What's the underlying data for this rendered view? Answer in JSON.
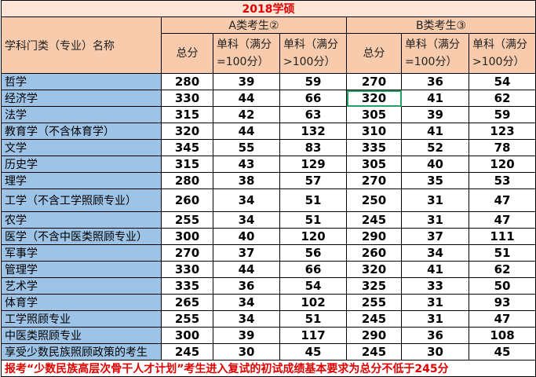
{
  "title": "2018学硕",
  "table": {
    "category_header": "学科门类（专业）名称",
    "group_headers": [
      "A类考生②",
      "B类考生③"
    ],
    "subheaders": [
      "总分",
      "单科（满分=100分）",
      "单科（满分>100分）",
      "总分",
      "单科（满分=100分）",
      "单科（满分>100分）"
    ],
    "rows": [
      [
        "哲学",
        280,
        39,
        59,
        270,
        36,
        54
      ],
      [
        "经济学",
        330,
        44,
        66,
        320,
        41,
        62
      ],
      [
        "法学",
        315,
        42,
        63,
        305,
        39,
        59
      ],
      [
        "教育学（不含体育学）",
        320,
        44,
        132,
        310,
        41,
        123
      ],
      [
        "文学",
        345,
        55,
        83,
        335,
        52,
        78
      ],
      [
        "历史学",
        315,
        43,
        129,
        305,
        40,
        120
      ],
      [
        "理学",
        280,
        38,
        57,
        270,
        35,
        53
      ],
      [
        "工学（不含工学照顾专业）",
        260,
        34,
        51,
        250,
        31,
        47
      ],
      [
        "农学",
        255,
        34,
        51,
        245,
        31,
        47
      ],
      [
        "医学（不含中医类照顾专业）",
        300,
        40,
        120,
        290,
        37,
        111
      ],
      [
        "军事学",
        270,
        37,
        56,
        260,
        34,
        51
      ],
      [
        "管理学",
        330,
        44,
        66,
        320,
        41,
        62
      ],
      [
        "艺术学",
        335,
        36,
        54,
        325,
        33,
        50
      ],
      [
        "体育学",
        265,
        34,
        102,
        255,
        31,
        93
      ],
      [
        "工学照顾专业",
        255,
        34,
        51,
        245,
        31,
        47
      ],
      [
        "中医类照顾专业",
        300,
        39,
        117,
        290,
        36,
        108
      ],
      [
        "享受少数民族照顾政策的考生",
        245,
        30,
        45,
        245,
        30,
        45
      ]
    ],
    "footnote": "报考“少数民族高层次骨干人才计划”考生进入复试的初试成绩基本要求为总分不低于245分"
  }
}
